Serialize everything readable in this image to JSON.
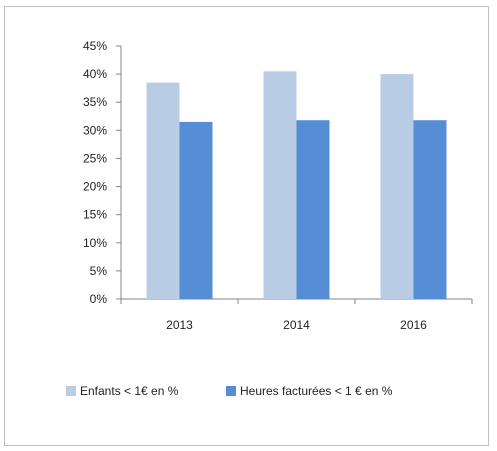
{
  "chart_data": {
    "type": "bar",
    "title": "",
    "xlabel": "",
    "ylabel": "",
    "categories": [
      "2013",
      "2014",
      "2016"
    ],
    "ylim": [
      0,
      45
    ],
    "yticks": [
      0,
      5,
      10,
      15,
      20,
      25,
      30,
      35,
      40,
      45
    ],
    "ytick_labels": [
      "0%",
      "5%",
      "10%",
      "15%",
      "20%",
      "25%",
      "30%",
      "35%",
      "40%",
      "45%"
    ],
    "grid": false,
    "legend_position": "bottom",
    "series": [
      {
        "name": "Enfants < 1€ en %",
        "values": [
          38.5,
          40.5,
          40.0
        ],
        "color": "#b8cce4"
      },
      {
        "name": "Heures facturées < 1 € en %",
        "values": [
          31.5,
          31.8,
          31.8
        ],
        "color": "#558ed5"
      }
    ]
  }
}
